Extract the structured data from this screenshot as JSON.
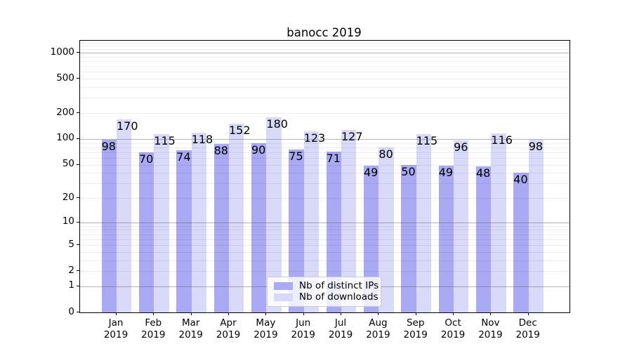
{
  "chart_data": {
    "type": "bar",
    "title": "banocc 2019",
    "categories": [
      "Jan",
      "Feb",
      "Mar",
      "Apr",
      "May",
      "Jun",
      "Jul",
      "Aug",
      "Sep",
      "Oct",
      "Nov",
      "Dec"
    ],
    "year_label": "2019",
    "series": [
      {
        "name": "Nb of distinct IPs",
        "color": "#a9a9f4",
        "values": [
          98,
          70,
          74,
          88,
          90,
          75,
          71,
          49,
          50,
          49,
          48,
          40
        ]
      },
      {
        "name": "Nb of downloads",
        "color": "#d9d9f9",
        "values": [
          170,
          115,
          118,
          152,
          180,
          123,
          127,
          80,
          115,
          96,
          116,
          98
        ]
      }
    ],
    "y_ticks": [
      0,
      1,
      2,
      5,
      10,
      20,
      50,
      100,
      200,
      500,
      1000
    ],
    "y_scale": "log1p",
    "ylim": [
      0,
      1375
    ],
    "grid": true,
    "legend_position": "lower center",
    "colors": {
      "axis": "#000000",
      "grid_minor": "#ededed",
      "grid_major": "#b7b7b7"
    }
  }
}
